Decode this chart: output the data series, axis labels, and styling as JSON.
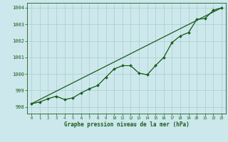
{
  "xlabel": "Graphe pression niveau de la mer (hPa)",
  "bg_color": "#cce8ec",
  "grid_color": "#aacccc",
  "line_color": "#1a5c1a",
  "xlim": [
    -0.5,
    23.5
  ],
  "ylim": [
    997.6,
    1004.3
  ],
  "yticks": [
    998,
    999,
    1000,
    1001,
    1002,
    1003,
    1004
  ],
  "xticks": [
    0,
    1,
    2,
    3,
    4,
    5,
    6,
    7,
    8,
    9,
    10,
    11,
    12,
    13,
    14,
    15,
    16,
    17,
    18,
    19,
    20,
    21,
    22,
    23
  ],
  "pressure_data": [
    998.2,
    998.3,
    998.5,
    998.65,
    998.45,
    998.55,
    998.85,
    999.1,
    999.3,
    999.8,
    1000.3,
    1000.5,
    1000.5,
    1000.05,
    999.95,
    1000.5,
    1001.0,
    1001.9,
    1002.3,
    1002.5,
    1003.3,
    1003.35,
    1003.85,
    1004.0
  ],
  "trend_x": [
    0,
    23
  ],
  "trend_y": [
    998.2,
    1004.0
  ]
}
